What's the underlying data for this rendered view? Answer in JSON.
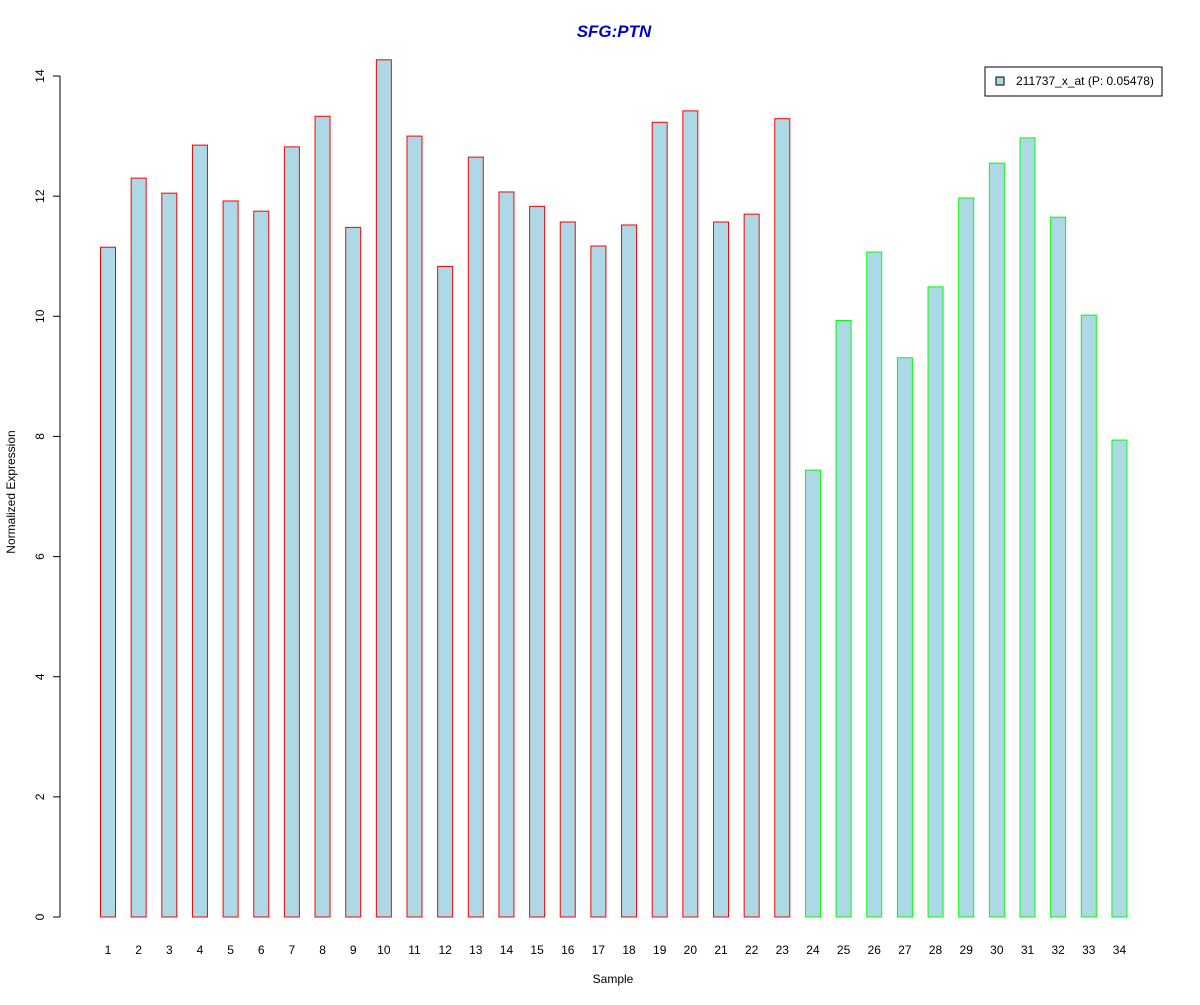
{
  "chart_data": {
    "type": "bar",
    "title": "SFG:PTN",
    "xlabel": "Sample",
    "ylabel": "Normalized Expression",
    "ylim": [
      0,
      14.3
    ],
    "yticks": [
      "0",
      "2",
      "4",
      "6",
      "8",
      "10",
      "12",
      "14"
    ],
    "categories": [
      "1",
      "2",
      "3",
      "4",
      "5",
      "6",
      "7",
      "8",
      "9",
      "10",
      "11",
      "12",
      "13",
      "14",
      "15",
      "16",
      "17",
      "18",
      "19",
      "20",
      "21",
      "22",
      "23",
      "24",
      "25",
      "26",
      "27",
      "28",
      "29",
      "30",
      "31",
      "32",
      "33",
      "34"
    ],
    "series": [
      {
        "name": "211737_x_at (P: 0.05478)",
        "values": [
          11.15,
          12.3,
          12.05,
          12.85,
          11.92,
          11.75,
          12.82,
          13.33,
          11.48,
          14.27,
          13.0,
          10.83,
          12.65,
          12.07,
          11.83,
          11.57,
          11.17,
          11.52,
          13.23,
          13.42,
          11.57,
          11.7,
          13.29,
          7.44,
          9.93,
          11.07,
          9.31,
          10.49,
          11.97,
          12.55,
          12.97,
          11.65,
          10.02,
          7.94
        ]
      }
    ],
    "bar_fill": "#ADD8E6",
    "group_border_colors": [
      "#FF0000",
      "#FF0000",
      "#FF0000",
      "#FF0000",
      "#FF0000",
      "#FF0000",
      "#FF0000",
      "#FF0000",
      "#FF0000",
      "#FF0000",
      "#FF0000",
      "#FF0000",
      "#FF0000",
      "#FF0000",
      "#FF0000",
      "#FF0000",
      "#FF0000",
      "#FF0000",
      "#FF0000",
      "#FF0000",
      "#FF0000",
      "#FF0000",
      "#FF0000",
      "#00FF00",
      "#00FF00",
      "#00FF00",
      "#00FF00",
      "#00FF00",
      "#00FF00",
      "#00FF00",
      "#00FF00",
      "#00FF00",
      "#00FF00",
      "#00FF00"
    ],
    "title_color": "#0000CC",
    "legend_position": "top-right",
    "grid": false
  }
}
